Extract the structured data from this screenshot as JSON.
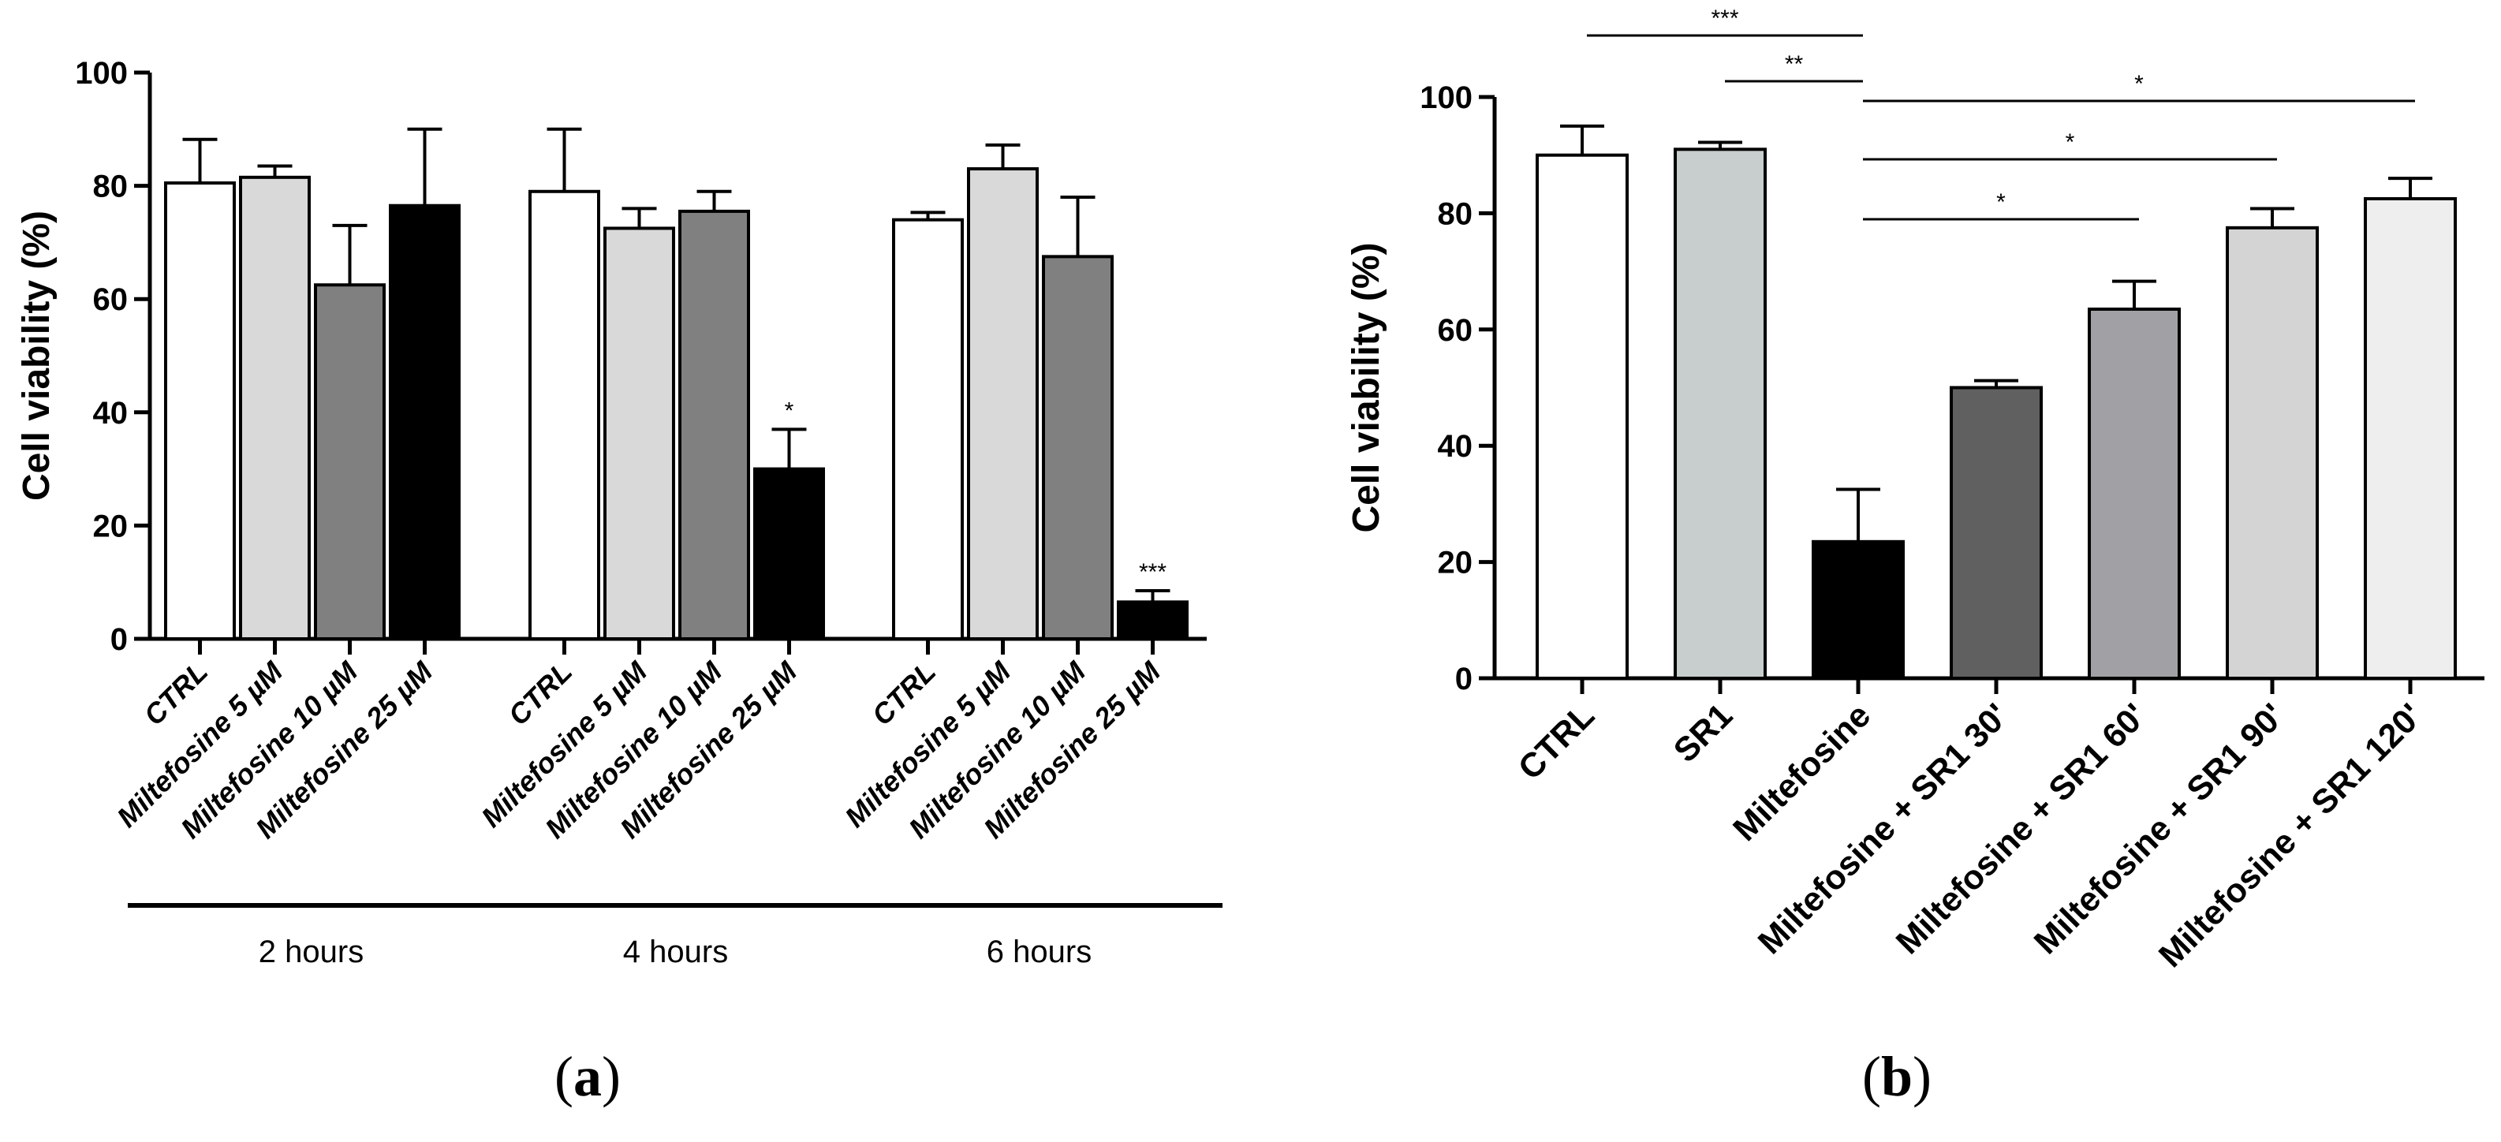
{
  "chart_data": [
    {
      "panel": "a",
      "type": "bar",
      "ylabel": "Cell viability (%)",
      "ylim": [
        0,
        100
      ],
      "yticks": [
        0,
        20,
        40,
        60,
        80,
        100
      ],
      "groups": [
        {
          "label": "2 hours",
          "bars": [
            {
              "category": "CTRL",
              "value": 80.5,
              "error": 7.7,
              "color": "#ffffff",
              "sig": ""
            },
            {
              "category": "Miltefosine 5 µM",
              "value": 81.5,
              "error": 2.0,
              "color": "#d9d9d9",
              "sig": ""
            },
            {
              "category": "Miltefosine 10 µM",
              "value": 62.5,
              "error": 10.5,
              "color": "#808080",
              "sig": ""
            },
            {
              "category": "Miltefosine 25 µM",
              "value": 76.5,
              "error": 13.5,
              "color": "#000000",
              "sig": ""
            }
          ]
        },
        {
          "label": "4 hours",
          "bars": [
            {
              "category": "CTRL",
              "value": 79.0,
              "error": 11.0,
              "color": "#ffffff",
              "sig": ""
            },
            {
              "category": "Miltefosine 5 µM",
              "value": 72.5,
              "error": 3.5,
              "color": "#d9d9d9",
              "sig": ""
            },
            {
              "category": "Miltefosine 10 µM",
              "value": 75.5,
              "error": 3.5,
              "color": "#808080",
              "sig": ""
            },
            {
              "category": "Miltefosine 25 µM",
              "value": 30.0,
              "error": 7.0,
              "color": "#000000",
              "sig": "*"
            }
          ]
        },
        {
          "label": "6 hours",
          "bars": [
            {
              "category": "CTRL",
              "value": 74.0,
              "error": 1.3,
              "color": "#ffffff",
              "sig": ""
            },
            {
              "category": "Miltefosine 5 µM",
              "value": 83.0,
              "error": 4.2,
              "color": "#d9d9d9",
              "sig": ""
            },
            {
              "category": "Miltefosine 10 µM",
              "value": 67.5,
              "error": 10.5,
              "color": "#808080",
              "sig": ""
            },
            {
              "category": "Miltefosine 25 µM",
              "value": 6.5,
              "error": 2.0,
              "color": "#000000",
              "sig": "***"
            }
          ]
        }
      ]
    },
    {
      "panel": "b",
      "type": "bar",
      "ylabel": "Cell viability (%)",
      "ylim": [
        0,
        100
      ],
      "yticks": [
        0,
        20,
        40,
        60,
        80,
        100
      ],
      "bars": [
        {
          "category": "CTRL",
          "value": 90.0,
          "error": 5.0,
          "color": "#ffffff"
        },
        {
          "category": "SR1",
          "value": 91.0,
          "error": 1.2,
          "color": "#c8cdcd"
        },
        {
          "category": "Miltefosine",
          "value": 23.5,
          "error": 9.0,
          "color": "#000000"
        },
        {
          "category": "Miltefosine + SR1 30'",
          "value": 50.0,
          "error": 1.2,
          "color": "#606060"
        },
        {
          "category": "Miltefosine + SR1 60'",
          "value": 63.5,
          "error": 4.8,
          "color": "#a0a0a5"
        },
        {
          "category": "Miltefosine + SR1 90'",
          "value": 77.5,
          "error": 3.3,
          "color": "#d4d4d4"
        },
        {
          "category": "Miltefosine + SR1 120'",
          "value": 82.5,
          "error": 3.5,
          "color": "#eeeeee"
        }
      ],
      "comparisons": [
        {
          "from": 0,
          "to": 2,
          "label": "***"
        },
        {
          "from": 1,
          "to": 2,
          "label": "**"
        },
        {
          "from": 2,
          "to": 6,
          "label": "*"
        },
        {
          "from": 2,
          "to": 5,
          "label": "*"
        },
        {
          "from": 2,
          "to": 4,
          "label": "*"
        }
      ]
    }
  ],
  "panel_labels": {
    "a": {
      "open": "(",
      "letter": "a",
      "close": ")"
    },
    "b": {
      "open": "(",
      "letter": "b",
      "close": ")"
    }
  }
}
